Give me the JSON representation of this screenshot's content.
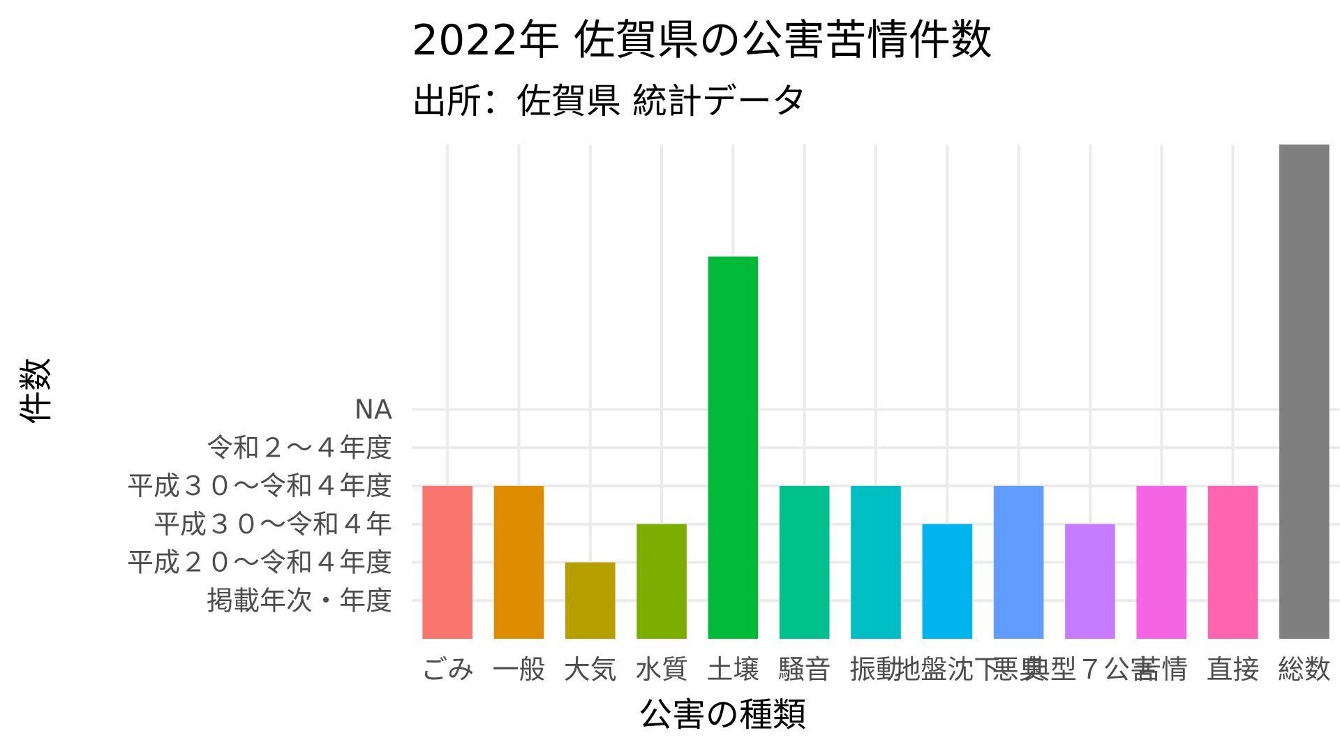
{
  "chart_data": {
    "type": "bar",
    "title": "2022年 佐賀県の公害苦情件数",
    "subtitle": "出所：佐賀県 統計データ",
    "xlabel": "公害の種類",
    "ylabel": "件数",
    "y_categories": [
      "掲載年次・年度",
      "平成２０～令和４年度",
      "平成３０～令和４年",
      "平成３０～令和４年度",
      "令和２～４年度",
      "NA"
    ],
    "categories": [
      "ごみ",
      "一般",
      "大気",
      "水質",
      "土壌",
      "騒音",
      "振動",
      "地盤沈下",
      "悪臭",
      "典型７公害",
      "苦情",
      "直接",
      "総数"
    ],
    "values": [
      4,
      4,
      2,
      3,
      10,
      4,
      4,
      3,
      4,
      3,
      4,
      4,
      13
    ],
    "colors": [
      "#F8766D",
      "#DE8C00",
      "#B79F00",
      "#7CAE00",
      "#00BA38",
      "#00C08B",
      "#00BFC4",
      "#00B4F0",
      "#619CFF",
      "#C77CFF",
      "#F564E3",
      "#FF64B0",
      "#7F7F7F"
    ],
    "grid": true,
    "legend": "none"
  }
}
